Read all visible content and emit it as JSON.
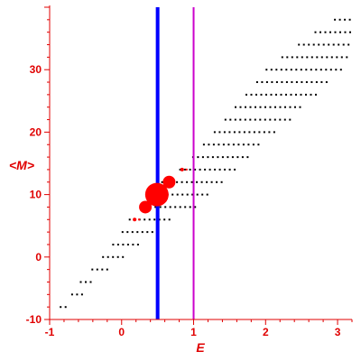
{
  "colors": {
    "axis": "#e00000",
    "dots": "#000000",
    "highlight": "#ff0000",
    "vline_blue": "#0000ff",
    "vline_magenta": "#cc00cc"
  },
  "chart_data": {
    "type": "scatter",
    "title": "",
    "xlabel": "E",
    "ylabel": "<M>",
    "xlim": [
      -1,
      3.2
    ],
    "ylim": [
      -10,
      40
    ],
    "xticks": [
      -1,
      0,
      1,
      2,
      3
    ],
    "yticks": [
      -10,
      0,
      10,
      20,
      30
    ],
    "xtick_labels": [
      "-1",
      "0",
      "1",
      "2",
      "3"
    ],
    "ytick_labels": [
      "-10",
      "0",
      "10",
      "20",
      "30"
    ],
    "grid": false,
    "vlines": [
      {
        "x": 0.5,
        "color": "#0000ff"
      },
      {
        "x": 1.0,
        "color": "#cc00cc"
      }
    ],
    "dot_bands": [
      {
        "y": -8,
        "x0": -0.86,
        "x1": -0.74
      },
      {
        "y": -6,
        "x0": -0.7,
        "x1": -0.55
      },
      {
        "y": -4,
        "x0": -0.58,
        "x1": -0.38
      },
      {
        "y": -2,
        "x0": -0.42,
        "x1": -0.2
      },
      {
        "y": 0,
        "x0": -0.27,
        "x1": 0.05
      },
      {
        "y": 2,
        "x0": -0.13,
        "x1": 0.28
      },
      {
        "y": 4,
        "x0": 0.0,
        "x1": 0.5
      },
      {
        "y": 6,
        "x0": 0.1,
        "x1": 0.7
      },
      {
        "y": 8,
        "x0": 0.25,
        "x1": 1.05
      },
      {
        "y": 10,
        "x0": 0.35,
        "x1": 1.2
      },
      {
        "y": 12,
        "x0": 0.55,
        "x1": 1.4
      },
      {
        "y": 14,
        "x0": 0.8,
        "x1": 1.6
      },
      {
        "y": 16,
        "x0": 0.98,
        "x1": 1.8
      },
      {
        "y": 18,
        "x0": 1.13,
        "x1": 1.95
      },
      {
        "y": 20,
        "x0": 1.28,
        "x1": 2.12
      },
      {
        "y": 22,
        "x0": 1.43,
        "x1": 2.33
      },
      {
        "y": 24,
        "x0": 1.57,
        "x1": 2.52
      },
      {
        "y": 26,
        "x0": 1.72,
        "x1": 2.7
      },
      {
        "y": 28,
        "x0": 1.87,
        "x1": 2.9
      },
      {
        "y": 30,
        "x0": 2.0,
        "x1": 3.05
      },
      {
        "y": 32,
        "x0": 2.22,
        "x1": 3.15
      },
      {
        "y": 34,
        "x0": 2.45,
        "x1": 3.18
      },
      {
        "y": 36,
        "x0": 2.68,
        "x1": 3.18
      },
      {
        "y": 38,
        "x0": 2.95,
        "x1": 3.18
      }
    ],
    "highlight_points": [
      {
        "x": 0.18,
        "y": 6,
        "size": 2
      },
      {
        "x": 0.33,
        "y": 8,
        "size": 7
      },
      {
        "x": 0.49,
        "y": 10,
        "size": 13
      },
      {
        "x": 0.66,
        "y": 12,
        "size": 7
      },
      {
        "x": 0.84,
        "y": 14,
        "size": 2
      }
    ]
  }
}
